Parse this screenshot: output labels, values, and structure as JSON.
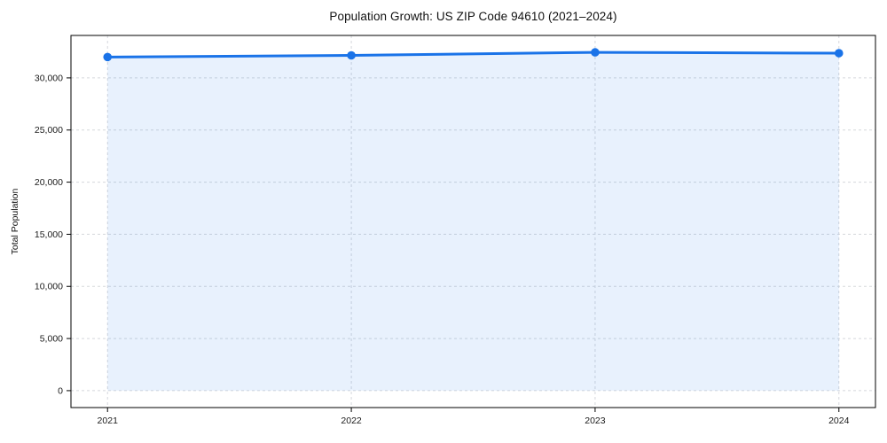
{
  "chart_data": {
    "type": "line",
    "title": "Population Growth: US ZIP Code 94610 (2021–2024)",
    "xlabel": "",
    "ylabel": "Total Population",
    "x": [
      2021,
      2022,
      2023,
      2024
    ],
    "categories": [
      "2021",
      "2022",
      "2023",
      "2024"
    ],
    "series": [
      {
        "name": "Total Population",
        "values": [
          32000,
          32160,
          32450,
          32370
        ]
      }
    ],
    "area_fill_to": 0,
    "ylim": [
      -1622,
      34072
    ],
    "yticks": [
      0,
      5000,
      10000,
      15000,
      20000,
      25000,
      30000
    ],
    "ytick_labels": [
      "0",
      "5,000",
      "10,000",
      "15,000",
      "20,000",
      "25,000",
      "30,000"
    ],
    "grid": true,
    "grid_style": "dashed",
    "legend": "none",
    "marker": "circle"
  },
  "colors": {
    "line": "#1a73e8",
    "marker": "#1a73e8",
    "fill": "rgba(26,115,232,0.10)",
    "grid": "#d5d8dc",
    "spine": "#000000",
    "text": "#1a1a1a",
    "background": "#ffffff"
  }
}
